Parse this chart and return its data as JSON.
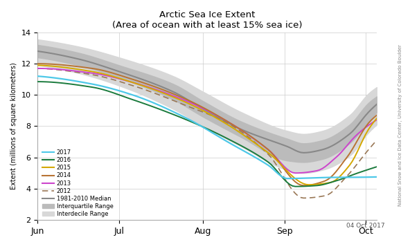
{
  "title": "Arctic Sea Ice Extent",
  "subtitle": "(Area of ocean with at least 15% sea ice)",
  "ylabel": "Extent (millions of square kilometers)",
  "xlabel_date": "04 Oct 2017",
  "watermark": "National Snow and Ice Data Center, University of Colorado Boulder",
  "ylim": [
    2,
    14
  ],
  "yticks": [
    2,
    4,
    6,
    8,
    10,
    12,
    14
  ],
  "colors": {
    "2017": "#4DC8E8",
    "2016": "#1A7A3C",
    "2015": "#D4A800",
    "2014": "#B87333",
    "2013": "#CC44CC",
    "2012": "#997755",
    "median": "#888888",
    "interquartile": "#BBBBBB",
    "interdecile": "#D8D8D8"
  }
}
